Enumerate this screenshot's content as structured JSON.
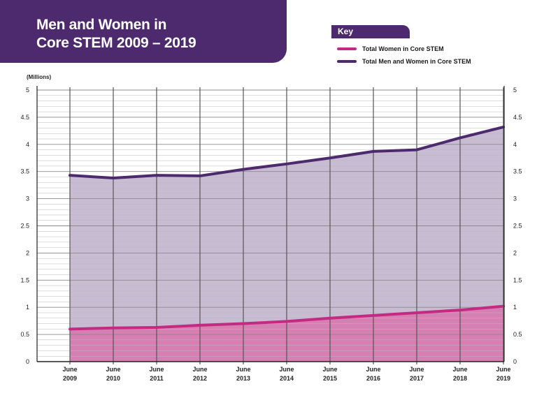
{
  "colors": {
    "banner": "#4d2a6d",
    "women_line": "#c42a82",
    "women_fill": "#d67fb3",
    "total_line": "#4d2a6d",
    "total_fill": "#c8bcd2"
  },
  "key": {
    "title": "Key",
    "items": [
      {
        "label": "Total Women in Core STEM",
        "color": "#c42a82"
      },
      {
        "label": "Total Men and Women in Core STEM",
        "color": "#4d2a6d"
      }
    ]
  },
  "chart_data": {
    "type": "area",
    "title": "Men and Women in Core STEM 2009 – 2019",
    "title_lines": [
      "Men and Women in",
      "Core STEM 2009 – 2019"
    ],
    "unit_label": "(Millions)",
    "x_month": "June",
    "x": [
      "2009",
      "2010",
      "2011",
      "2012",
      "2013",
      "2014",
      "2015",
      "2016",
      "2017",
      "2018",
      "2019"
    ],
    "series": [
      {
        "name": "Total Men and Women in Core STEM",
        "values": [
          3.43,
          3.38,
          3.43,
          3.42,
          3.54,
          3.64,
          3.75,
          3.87,
          3.9,
          4.12,
          4.32
        ]
      },
      {
        "name": "Total Women in Core STEM",
        "values": [
          0.6,
          0.62,
          0.63,
          0.67,
          0.7,
          0.74,
          0.8,
          0.85,
          0.9,
          0.95,
          1.02
        ]
      }
    ],
    "ylim": [
      0,
      5
    ],
    "y_ticks": [
      "0",
      "0.5",
      "1",
      "1.5",
      "2",
      "2.5",
      "3",
      "3.5",
      "4",
      "4.5",
      "5"
    ],
    "grid": true,
    "legend": "top-right"
  }
}
